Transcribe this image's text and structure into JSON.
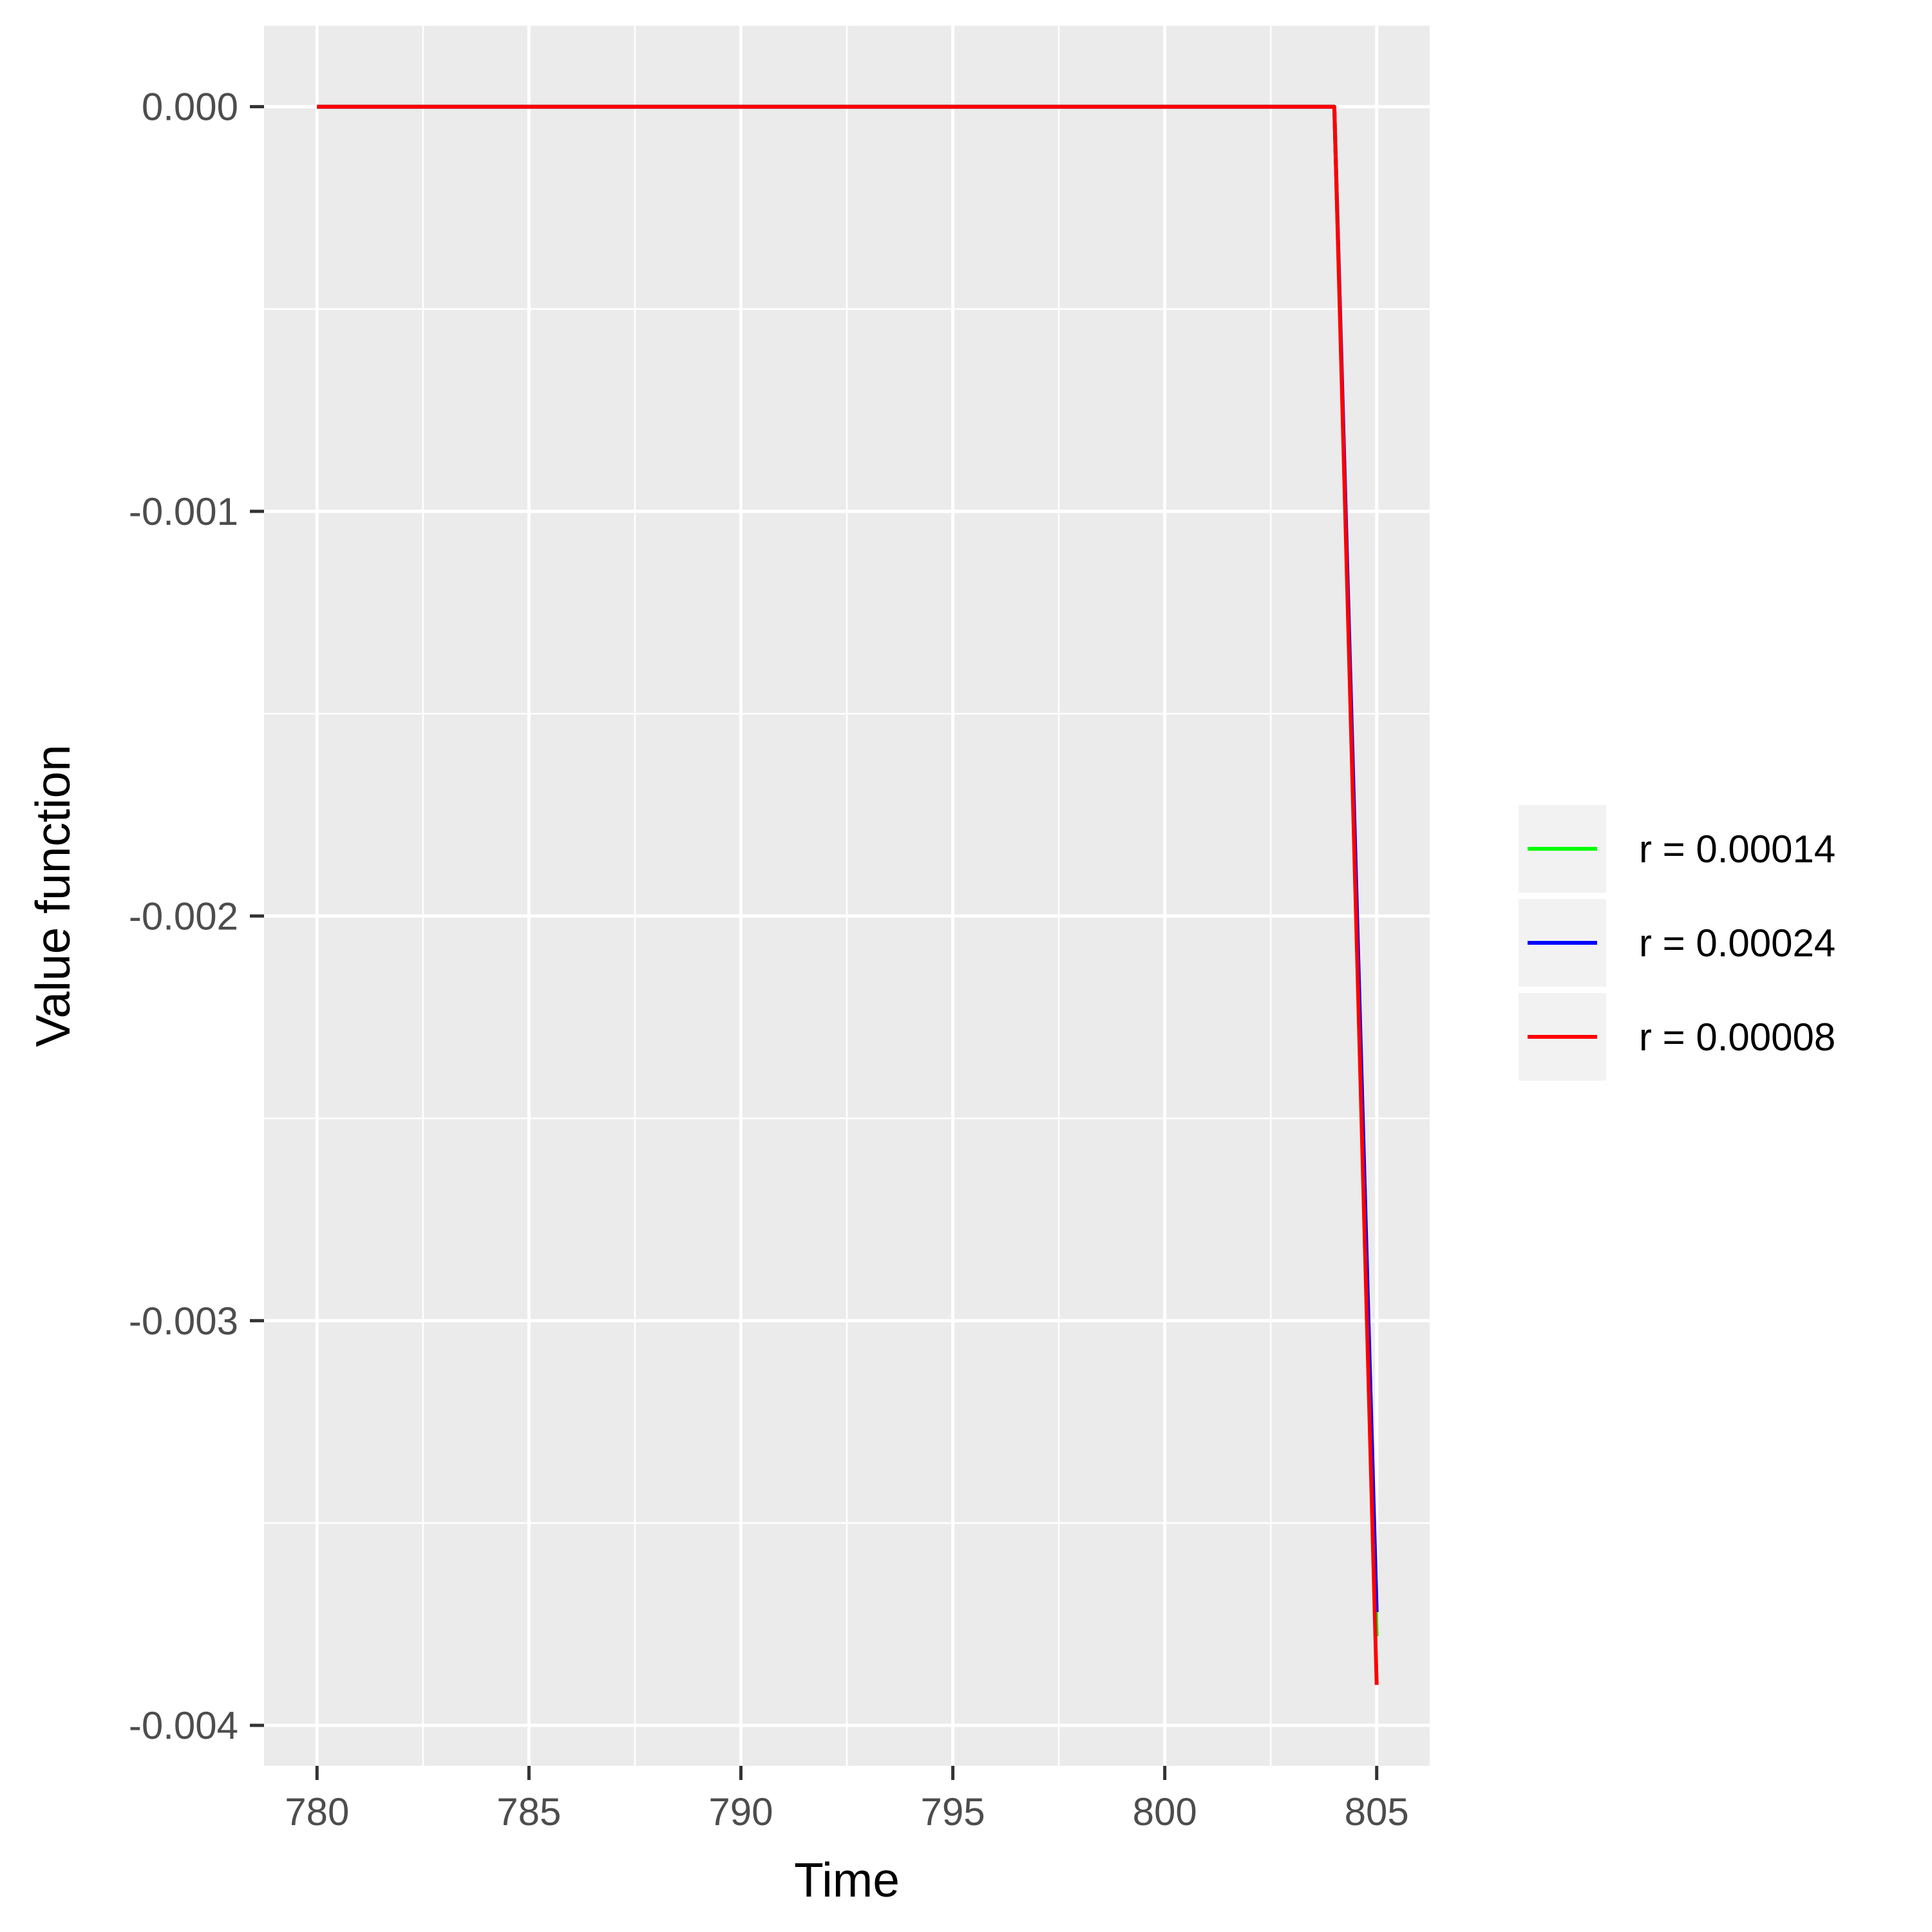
{
  "chart_data": {
    "type": "line",
    "title": "",
    "xlabel": "Time",
    "ylabel": "Value function",
    "xlim": [
      778.75,
      806.25
    ],
    "ylim": [
      -0.0041,
      0.0002
    ],
    "x_ticks": [
      780,
      785,
      790,
      795,
      800,
      805
    ],
    "x_tick_labels": [
      "780",
      "785",
      "790",
      "795",
      "800",
      "805"
    ],
    "y_ticks": [
      0.0,
      -0.001,
      -0.002,
      -0.003,
      -0.004
    ],
    "y_tick_labels": [
      "0.000",
      "-0.001",
      "-0.002",
      "-0.003",
      "-0.004"
    ],
    "grid": true,
    "legend_position": "right",
    "series": [
      {
        "name": "r = 0.00014",
        "color": "#00ff00",
        "x": [
          780,
          781,
          782,
          783,
          784,
          785,
          786,
          787,
          788,
          789,
          790,
          791,
          792,
          793,
          794,
          795,
          796,
          797,
          798,
          799,
          800,
          801,
          802,
          803,
          804,
          805
        ],
        "y": [
          0,
          0,
          0,
          0,
          0,
          0,
          0,
          0,
          0,
          0,
          0,
          0,
          0,
          0,
          0,
          0,
          0,
          0,
          0,
          0,
          0,
          0,
          0,
          0,
          0,
          -0.00378
        ]
      },
      {
        "name": "r = 0.00024",
        "color": "#0000ff",
        "x": [
          780,
          781,
          782,
          783,
          784,
          785,
          786,
          787,
          788,
          789,
          790,
          791,
          792,
          793,
          794,
          795,
          796,
          797,
          798,
          799,
          800,
          801,
          802,
          803,
          804,
          805
        ],
        "y": [
          0,
          0,
          0,
          0,
          0,
          0,
          0,
          0,
          0,
          0,
          0,
          0,
          0,
          0,
          0,
          0,
          0,
          0,
          0,
          0,
          0,
          0,
          0,
          0,
          0,
          -0.00372
        ]
      },
      {
        "name": "r = 0.00008",
        "color": "#ff0000",
        "x": [
          780,
          781,
          782,
          783,
          784,
          785,
          786,
          787,
          788,
          789,
          790,
          791,
          792,
          793,
          794,
          795,
          796,
          797,
          798,
          799,
          800,
          801,
          802,
          803,
          804,
          805
        ],
        "y": [
          0,
          0,
          0,
          0,
          0,
          0,
          0,
          0,
          0,
          0,
          0,
          0,
          0,
          0,
          0,
          0,
          0,
          0,
          0,
          0,
          0,
          0,
          0,
          0,
          0,
          -0.0039
        ]
      }
    ],
    "colors": {
      "panel": "#ebebeb",
      "grid": "#ffffff",
      "legend_key_bg": "#f2f2f2",
      "tick": "#333333"
    }
  }
}
